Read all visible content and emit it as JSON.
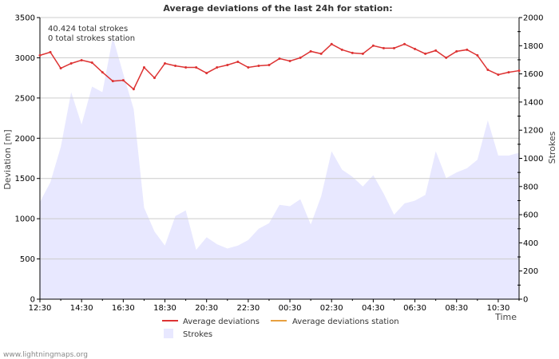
{
  "chart_data": {
    "type": "line",
    "title": "Average deviations of the last 24h for station:",
    "info_lines": [
      "40.424 total strokes",
      "0 total strokes station"
    ],
    "xlabel": "Time",
    "ylabel_left": "Deviation  [m]",
    "ylabel_right": "Strokes",
    "ylim_left": [
      0,
      3500
    ],
    "ylim_right": [
      0,
      2000
    ],
    "yticks_left": [
      0,
      500,
      1000,
      1500,
      2000,
      2500,
      3000,
      3500
    ],
    "yticks_right": [
      0,
      200,
      400,
      600,
      800,
      1000,
      1200,
      1400,
      1600,
      1800,
      2000
    ],
    "xlim": [
      0,
      46
    ],
    "xtick_positions": [
      0,
      4,
      8,
      12,
      16,
      20,
      24,
      28,
      32,
      36,
      40,
      44
    ],
    "xtick_labels": [
      "12:30",
      "14:30",
      "16:30",
      "18:30",
      "20:30",
      "22:30",
      "00:30",
      "02:30",
      "04:30",
      "06:30",
      "08:30",
      "10:30"
    ],
    "grid": true,
    "colors": {
      "deviation": "#dd3333",
      "deviation_station": "#e8a040",
      "strokes_fill": "#e8e8ff",
      "grid": "#cccccc",
      "axis": "#000000"
    },
    "series": [
      {
        "name": "Average deviations",
        "axis": "left",
        "values": [
          3030,
          3070,
          2870,
          2930,
          2970,
          2940,
          2820,
          2710,
          2720,
          2610,
          2880,
          2750,
          2930,
          2900,
          2880,
          2880,
          2810,
          2880,
          2910,
          2950,
          2880,
          2900,
          2910,
          2990,
          2960,
          3000,
          3080,
          3050,
          3170,
          3100,
          3060,
          3050,
          3150,
          3120,
          3120,
          3170,
          3110,
          3050,
          3090,
          3000,
          3080,
          3100,
          3030,
          2850,
          2790,
          2820,
          2840
        ]
      },
      {
        "name": "Average deviations station",
        "axis": "left",
        "values": []
      },
      {
        "name": "Strokes",
        "axis": "right",
        "values": [
          690,
          830,
          1080,
          1470,
          1240,
          1510,
          1470,
          1860,
          1600,
          1350,
          650,
          480,
          380,
          590,
          630,
          350,
          440,
          390,
          360,
          380,
          420,
          500,
          540,
          670,
          660,
          710,
          530,
          730,
          1050,
          920,
          870,
          800,
          880,
          750,
          600,
          680,
          700,
          740,
          1050,
          860,
          900,
          930,
          990,
          1270,
          1020,
          1020,
          1040
        ]
      }
    ],
    "legend": [
      "Average deviations",
      "Average deviations station",
      "Strokes"
    ],
    "legend_position": "bottom-center"
  },
  "footer": "www.lightningmaps.org"
}
